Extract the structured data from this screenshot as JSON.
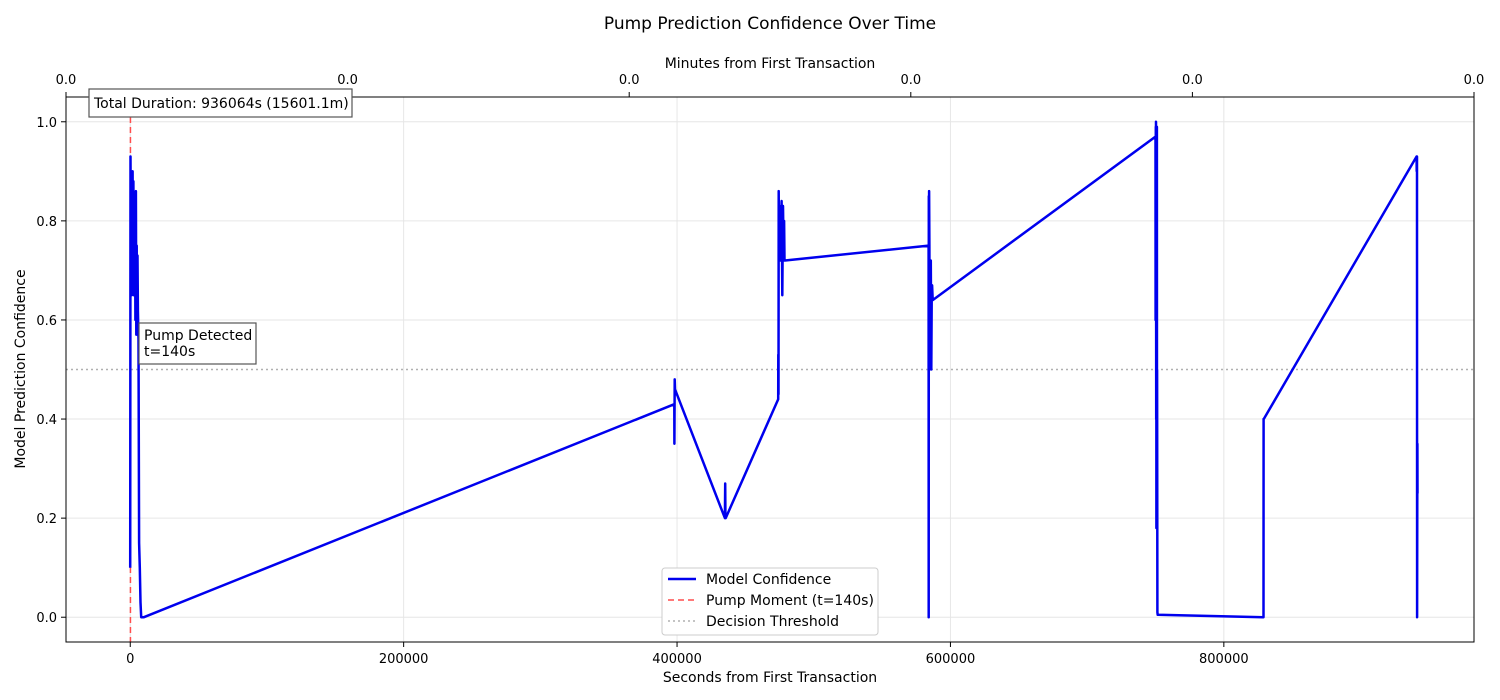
{
  "chart_data": {
    "type": "line",
    "title": "Pump Prediction Confidence Over Time",
    "xlabel": "Seconds from First Transaction",
    "ylabel": "Model Prediction Confidence",
    "top_xlabel": "Minutes from First Transaction",
    "xlim": [
      -47000,
      983000
    ],
    "ylim": [
      -0.05,
      1.05
    ],
    "xticks": [
      0,
      200000,
      400000,
      600000,
      800000
    ],
    "xtick_labels": [
      "0",
      "200000",
      "400000",
      "600000",
      "800000"
    ],
    "yticks": [
      0.0,
      0.2,
      0.4,
      0.6,
      0.8,
      1.0
    ],
    "ytick_labels": [
      "0.0",
      "0.2",
      "0.4",
      "0.6",
      "0.8",
      "1.0"
    ],
    "top_xtick_labels": [
      "0.0",
      "0.0",
      "0.0",
      "0.0",
      "0.0",
      "0.0"
    ],
    "grid": true,
    "legend_position": "bottom-center",
    "annotations": {
      "duration": "Total Duration: 936064s (15601.1m)",
      "pump_line1": "Pump Detected",
      "pump_line2": "t=140s"
    },
    "pump_moment_x": 140,
    "threshold_y": 0.5,
    "series": [
      {
        "name": "Model Confidence",
        "color": "#0000ee",
        "x": [
          0,
          150,
          300,
          450,
          600,
          800,
          1000,
          1200,
          1400,
          1700,
          2000,
          2300,
          2600,
          2900,
          3200,
          3500,
          3800,
          4100,
          4400,
          4700,
          5000,
          5300,
          5600,
          6000,
          6500,
          7000,
          7500,
          8000,
          9000,
          10000,
          398000,
          398100,
          398300,
          398500,
          435000,
          435200,
          435400,
          435600,
          474000,
          474100,
          474200,
          474400,
          474600,
          475000,
          475500,
          476000,
          476500,
          477000,
          477500,
          478000,
          478300,
          478600,
          479000,
          584000,
          584100,
          584200,
          584300,
          584400,
          584600,
          584800,
          585000,
          585300,
          585600,
          586000,
          586300,
          586600,
          587000,
          750000,
          750100,
          750200,
          750300,
          750400,
          750500,
          750600,
          750700,
          750800,
          750900,
          751000,
          751100,
          751200,
          751400,
          751600,
          829000,
          829100,
          829200,
          941000,
          941100,
          941200,
          941300,
          941400,
          941500,
          941600,
          941700
        ],
        "y": [
          0.1,
          0.93,
          0.82,
          0.9,
          0.75,
          0.88,
          0.65,
          0.86,
          0.78,
          0.9,
          0.7,
          0.88,
          0.65,
          0.8,
          0.72,
          0.83,
          0.6,
          0.86,
          0.57,
          0.75,
          0.6,
          0.73,
          0.62,
          0.56,
          0.15,
          0.1,
          0.03,
          0.0,
          0.0,
          0.0,
          0.43,
          0.35,
          0.48,
          0.46,
          0.2,
          0.27,
          0.21,
          0.2,
          0.44,
          0.53,
          0.45,
          0.86,
          0.74,
          0.83,
          0.72,
          0.79,
          0.84,
          0.65,
          0.83,
          0.72,
          0.8,
          0.72,
          0.72,
          0.75,
          0.0,
          0.85,
          0.52,
          0.86,
          0.75,
          0.5,
          0.72,
          0.64,
          0.72,
          0.5,
          0.64,
          0.67,
          0.64,
          0.97,
          0.6,
          0.99,
          0.85,
          1.0,
          0.4,
          0.95,
          0.18,
          0.98,
          0.65,
          0.99,
          0.2,
          0.5,
          0.01,
          0.005,
          0.0,
          0.4,
          0.4,
          0.93,
          0.9,
          0.92,
          0.93,
          0.0,
          0.25,
          0.35,
          0.25
        ]
      }
    ],
    "legend": {
      "series_label": "Model Confidence",
      "pump_label": "Pump Moment (t=140s)",
      "threshold_label": "Decision Threshold"
    },
    "colors": {
      "series": "#0000ee",
      "pump_line": "#ff4d4d",
      "threshold": "#b0b0b0",
      "grid": "#e6e6e6"
    }
  }
}
